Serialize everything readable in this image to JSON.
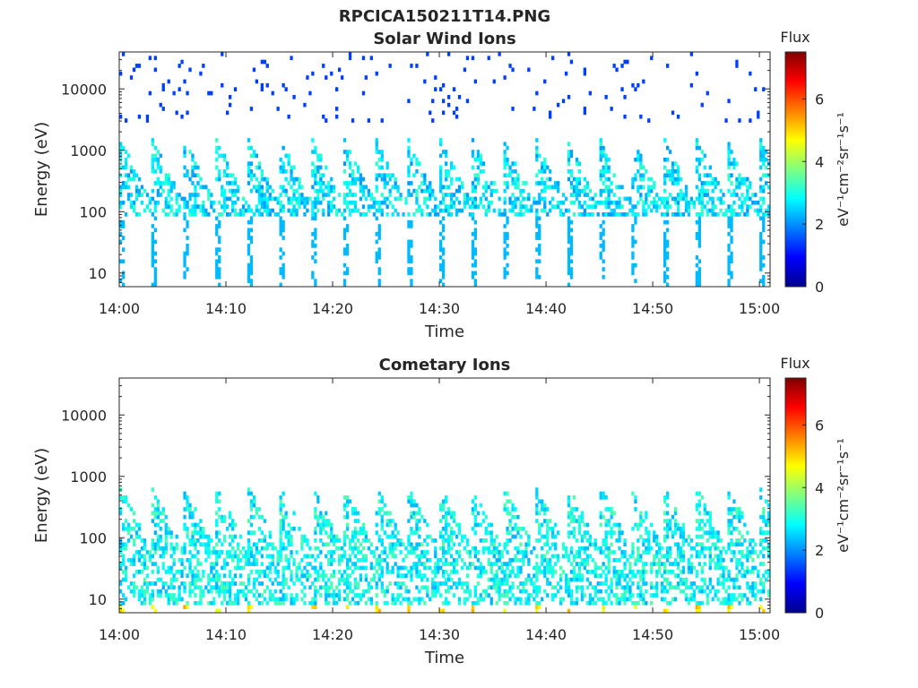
{
  "figure": {
    "title": "RPCICA150211T14.PNG"
  },
  "chart_data": [
    {
      "type": "heatmap",
      "title": "Solar Wind Ions",
      "xlabel": "Time",
      "ylabel": "Energy (eV)",
      "x_ticks": [
        "14:00",
        "14:10",
        "14:20",
        "14:30",
        "14:40",
        "14:50",
        "15:00"
      ],
      "x_range": [
        "14:00",
        "15:01"
      ],
      "y_scale": "log",
      "y_ticks": [
        "10",
        "100",
        "1000",
        "10000"
      ],
      "y_range": [
        6,
        40000
      ],
      "colorbar": {
        "title": "Flux",
        "label": "eV⁻¹cm⁻²sr⁻¹s⁻¹",
        "ticks": [
          "0",
          "2",
          "4",
          "6"
        ],
        "range": [
          0,
          7.5
        ]
      },
      "pulse_times": [
        "14:00",
        "14:03",
        "14:06",
        "14:09",
        "14:12",
        "14:15",
        "14:18",
        "14:21",
        "14:24",
        "14:27",
        "14:30",
        "14:33",
        "14:36",
        "14:39",
        "14:42",
        "14:45",
        "14:48",
        "14:51",
        "14:54",
        "14:57",
        "15:00"
      ],
      "typical_energy_band_eV": [
        90,
        1500
      ],
      "typical_flux_in_band": 2.4,
      "max_flux": 4.3
    },
    {
      "type": "heatmap",
      "title": "Cometary Ions",
      "xlabel": "Time",
      "ylabel": "Energy (eV)",
      "x_ticks": [
        "14:00",
        "14:10",
        "14:20",
        "14:30",
        "14:40",
        "14:50",
        "15:00"
      ],
      "x_range": [
        "14:00",
        "15:01"
      ],
      "y_scale": "log",
      "y_ticks": [
        "10",
        "100",
        "1000",
        "10000"
      ],
      "y_range": [
        6,
        40000
      ],
      "colorbar": {
        "title": "Flux",
        "label": "eV⁻¹cm⁻²sr⁻¹s⁻¹",
        "ticks": [
          "0",
          "2",
          "4",
          "6"
        ],
        "range": [
          0,
          7.5
        ]
      },
      "pulse_times": [
        "14:00",
        "14:03",
        "14:06",
        "14:09",
        "14:12",
        "14:15",
        "14:18",
        "14:21",
        "14:24",
        "14:27",
        "14:30",
        "14:33",
        "14:36",
        "14:39",
        "14:42",
        "14:45",
        "14:48",
        "14:51",
        "14:54",
        "14:57",
        "15:00"
      ],
      "typical_energy_band_eV": [
        8,
        700
      ],
      "typical_flux_in_band": 2.6,
      "max_flux": 5.4
    }
  ]
}
